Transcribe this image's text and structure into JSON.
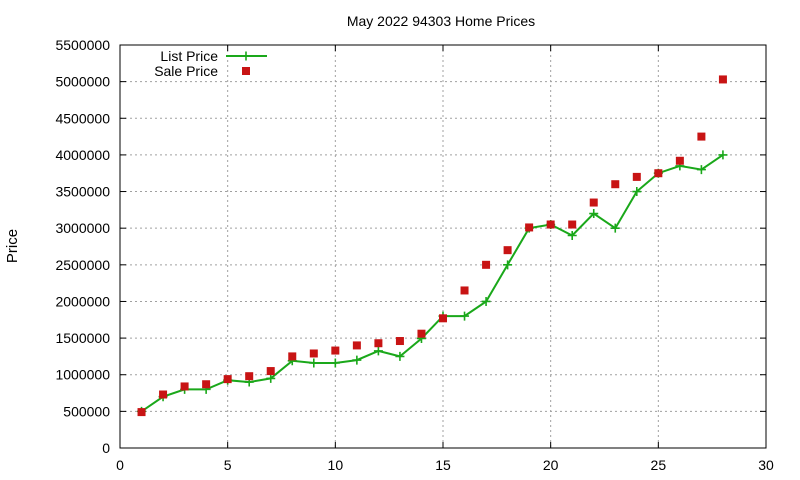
{
  "chart_data": {
    "type": "line",
    "title": "May 2022 94303 Home Prices",
    "xlabel": "",
    "ylabel": "Price",
    "xlim": [
      0,
      30
    ],
    "ylim": [
      0,
      5500000
    ],
    "xticks": [
      0,
      5,
      10,
      15,
      20,
      25,
      30
    ],
    "yticks": [
      0,
      500000,
      1000000,
      1500000,
      2000000,
      2500000,
      3000000,
      3500000,
      4000000,
      4500000,
      5000000,
      5500000
    ],
    "grid": true,
    "legend_position": "top-left",
    "series": [
      {
        "name": "List Price",
        "style": "lines+points",
        "marker": "plus",
        "color": "#1aa81a",
        "x": [
          1,
          2,
          3,
          4,
          5,
          6,
          7,
          8,
          9,
          10,
          11,
          12,
          13,
          14,
          15,
          16,
          17,
          18,
          19,
          20,
          21,
          22,
          23,
          24,
          25,
          26,
          27,
          28
        ],
        "values": [
          500000,
          700000,
          800000,
          800000,
          925000,
          900000,
          950000,
          1190000,
          1160000,
          1160000,
          1200000,
          1325000,
          1250000,
          1495000,
          1800000,
          1800000,
          2000000,
          2500000,
          3000000,
          3050000,
          2900000,
          3200000,
          3000000,
          3500000,
          3750000,
          3850000,
          3800000,
          4000000
        ]
      },
      {
        "name": "Sale Price",
        "style": "points",
        "marker": "square",
        "color": "#c81414",
        "x": [
          1,
          2,
          3,
          4,
          5,
          6,
          7,
          8,
          9,
          10,
          11,
          12,
          13,
          14,
          15,
          16,
          17,
          18,
          19,
          20,
          21,
          22,
          23,
          24,
          25,
          26,
          27,
          28
        ],
        "values": [
          490000,
          730000,
          840000,
          870000,
          940000,
          980000,
          1050000,
          1250000,
          1290000,
          1330000,
          1400000,
          1430000,
          1460000,
          1560000,
          1770000,
          2150000,
          2500000,
          2700000,
          3010000,
          3050000,
          3050000,
          3350000,
          3600000,
          3700000,
          3750000,
          3920000,
          4250000,
          5030000
        ]
      }
    ]
  }
}
